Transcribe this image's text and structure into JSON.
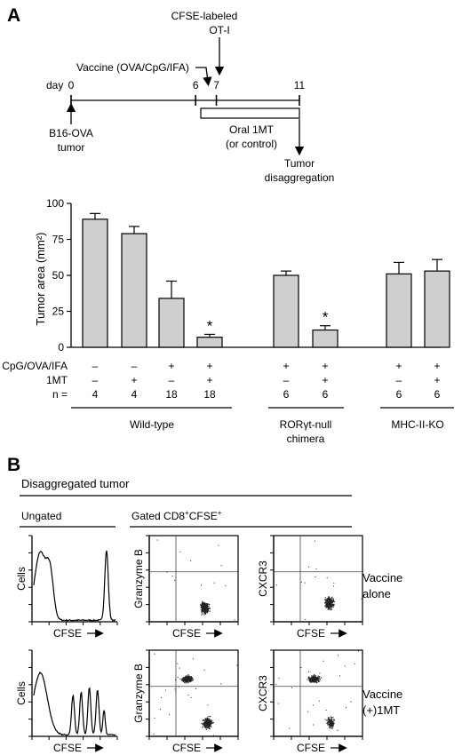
{
  "panel_a": {
    "label": "A",
    "timeline": {
      "day_label": "day",
      "ticks": [
        {
          "day": 0,
          "label": "0"
        },
        {
          "day": 6,
          "label": "6"
        },
        {
          "day": 7,
          "label": "7"
        },
        {
          "day": 11,
          "label": "11"
        }
      ],
      "cfse_label_line1": "CFSE-labeled",
      "cfse_label_line2": "OT-I",
      "vaccine_label": "Vaccine (OVA/CpG/IFA)",
      "tumor_label_line1": "B16-OVA",
      "tumor_label_line2": "tumor",
      "oral_label_line1": "Oral 1MT",
      "oral_label_line2": "(or control)",
      "disagg_label_line1": "Tumor",
      "disagg_label_line2": "disaggregation"
    },
    "row_labels": {
      "vaccine": "CpG/OVA/IFA",
      "drug": "1MT",
      "n": "n ="
    },
    "groups": [
      {
        "name": "Wild-type",
        "name_line2": ""
      },
      {
        "name": "RORγt-null",
        "name_line2": "chimera"
      },
      {
        "name": "MHC-II-KO",
        "name_line2": ""
      }
    ]
  },
  "chart_data": {
    "type": "bar",
    "ylabel": "Tumor area (mm²)",
    "ylim": [
      0,
      100
    ],
    "yticks": [
      0,
      25,
      50,
      75,
      100
    ],
    "bars": [
      {
        "value": 89,
        "error": 4,
        "vaccine": "–",
        "drug": "–",
        "n": "4",
        "star": ""
      },
      {
        "value": 79,
        "error": 5,
        "vaccine": "–",
        "drug": "+",
        "n": "4",
        "star": ""
      },
      {
        "value": 34,
        "error": 12,
        "vaccine": "+",
        "drug": "–",
        "n": "18",
        "star": ""
      },
      {
        "value": 7,
        "error": 2,
        "vaccine": "+",
        "drug": "+",
        "n": "18",
        "star": "*"
      },
      {
        "value": 50,
        "error": 3,
        "vaccine": "+",
        "drug": "–",
        "n": "6",
        "star": ""
      },
      {
        "value": 12,
        "error": 3,
        "vaccine": "+",
        "drug": "+",
        "n": "6",
        "star": "*"
      },
      {
        "value": 51,
        "error": 8,
        "vaccine": "+",
        "drug": "–",
        "n": "6",
        "star": ""
      },
      {
        "value": 53,
        "error": 8,
        "vaccine": "+",
        "drug": "+",
        "n": "6",
        "star": ""
      }
    ]
  },
  "panel_b": {
    "label": "B",
    "title": "Disaggregated tumor",
    "ungated_label": "Ungated",
    "gated_prefix": "Gated CD8",
    "gated_sup1": "+",
    "gated_mid": "CFSE",
    "gated_sup2": "+",
    "histogram_ylabel": "Cells",
    "xlabel": "CFSE",
    "granzyme_label": "Granzyme B",
    "cxcr3_label": "CXCR3",
    "row1_label_line1": "Vaccine",
    "row1_label_line2": "alone",
    "row2_label_line1": "Vaccine",
    "row2_label_line2": "(+)1MT"
  }
}
